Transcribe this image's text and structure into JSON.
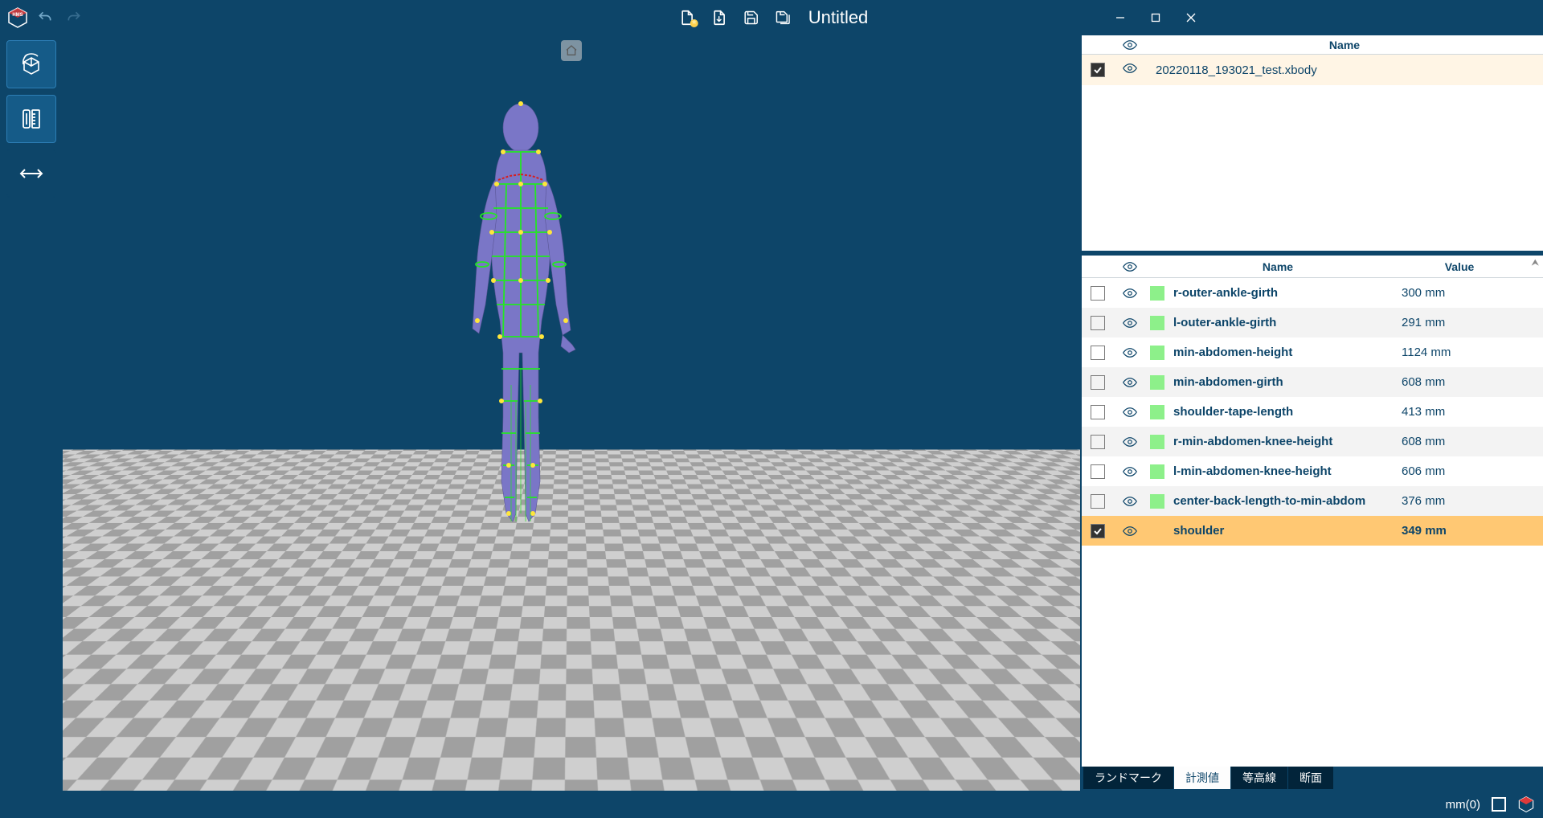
{
  "titlebar": {
    "title": "Untitled"
  },
  "models": {
    "header_name": "Name",
    "rows": [
      {
        "checked": true,
        "filename": "20220118_193021_test.xbody"
      }
    ]
  },
  "measurements": {
    "header_name": "Name",
    "header_value": "Value",
    "rows": [
      {
        "checked": false,
        "name": "r-outer-ankle-girth",
        "value": "300 mm",
        "swatch": "#8df08a",
        "alt": false
      },
      {
        "checked": false,
        "name": "l-outer-ankle-girth",
        "value": "291 mm",
        "swatch": "#8df08a",
        "alt": true
      },
      {
        "checked": false,
        "name": "min-abdomen-height",
        "value": "1124 mm",
        "swatch": "#8df08a",
        "alt": false
      },
      {
        "checked": false,
        "name": "min-abdomen-girth",
        "value": "608 mm",
        "swatch": "#8df08a",
        "alt": true
      },
      {
        "checked": false,
        "name": "shoulder-tape-length",
        "value": "413 mm",
        "swatch": "#8df08a",
        "alt": false
      },
      {
        "checked": false,
        "name": "r-min-abdomen-knee-height",
        "value": "608 mm",
        "swatch": "#8df08a",
        "alt": true
      },
      {
        "checked": false,
        "name": "l-min-abdomen-knee-height",
        "value": "606 mm",
        "swatch": "#8df08a",
        "alt": false
      },
      {
        "checked": false,
        "name": "center-back-length-to-min-abdom",
        "value": "376 mm",
        "swatch": "#8df08a",
        "alt": true
      },
      {
        "checked": true,
        "name": "shoulder",
        "value": "349 mm",
        "swatch": "#ffc873",
        "alt": false,
        "selected": true
      }
    ]
  },
  "tabs": [
    {
      "label": "ランドマーク",
      "active": false
    },
    {
      "label": "計測値",
      "active": true
    },
    {
      "label": "等高線",
      "active": false
    },
    {
      "label": "断面",
      "active": false
    }
  ],
  "status": {
    "unit": "mm(0)"
  },
  "colors": {
    "brand_dark": "#0d4569",
    "brand_mid": "#155b88",
    "swatch_green": "#8df08a",
    "row_alt": "#f3f3f3",
    "row_sel": "#ffc873",
    "model_row": "#fff5e5"
  }
}
